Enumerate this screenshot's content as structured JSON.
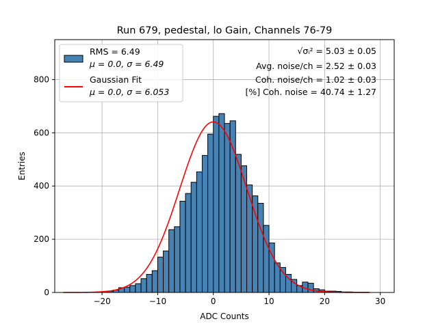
{
  "chart_data": {
    "type": "bar",
    "title": "Run 679, pedestal, lo Gain, Channels 76-79",
    "xlabel": "ADC Counts",
    "ylabel": "Entries",
    "xlim": [
      -28.5,
      32.5
    ],
    "ylim": [
      0,
      950
    ],
    "xticks": [
      -20,
      -10,
      0,
      10,
      20,
      30
    ],
    "yticks": [
      0,
      200,
      400,
      600,
      800
    ],
    "grid": true,
    "bin_width": 1,
    "bin_left_edges": [
      -21,
      -20,
      -19,
      -18,
      -17,
      -16,
      -15,
      -14,
      -13,
      -12,
      -11,
      -10,
      -9,
      -8,
      -7,
      -6,
      -5,
      -4,
      -3,
      -2,
      -1,
      0,
      1,
      2,
      3,
      4,
      5,
      6,
      7,
      8,
      9,
      10,
      11,
      12,
      13,
      14,
      15,
      16,
      17,
      18,
      19,
      20,
      21,
      22,
      23,
      24,
      25,
      26,
      27
    ],
    "counts": [
      2,
      4,
      5,
      9,
      18,
      20,
      26,
      33,
      52,
      68,
      82,
      133,
      156,
      236,
      247,
      343,
      372,
      414,
      453,
      515,
      595,
      662,
      672,
      635,
      645,
      519,
      476,
      404,
      363,
      335,
      252,
      186,
      111,
      94,
      68,
      49,
      26,
      39,
      35,
      14,
      10,
      5,
      5,
      4,
      2,
      2,
      1,
      1,
      1
    ],
    "bar_color": "#4682b4",
    "fit": {
      "label": "Gaussian Fit",
      "mu": 0.0,
      "sigma": 6.053,
      "amplitude": 641,
      "x_range": [
        -27,
        28
      ],
      "color": "#ff0000"
    },
    "legend": {
      "placement": "top-left",
      "entries": [
        {
          "line1": "RMS = 6.49",
          "line2": "μ = 0.0, σ = 6.49",
          "type": "patch"
        },
        {
          "line1": "Gaussian Fit",
          "line2": "μ = 0.0, σ = 6.053",
          "type": "line"
        }
      ]
    },
    "annotations": [
      "√σᵢ² = 5.03 ± 0.05",
      "Avg. noise/ch = 2.52 ± 0.03",
      "Coh. noise/ch = 1.02 ± 0.03",
      "[%] Coh. noise = 40.74 ± 1.27"
    ]
  }
}
